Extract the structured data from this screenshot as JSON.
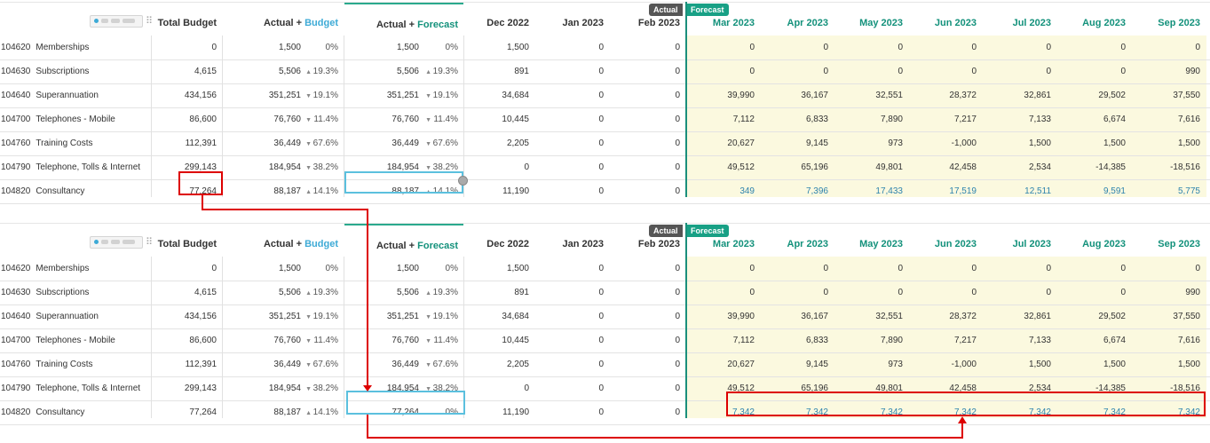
{
  "headers": {
    "total_budget": "Total Budget",
    "actual_budget": {
      "actual": "Actual",
      "plus": " + ",
      "budget": "Budget"
    },
    "actual_forecast": {
      "actual": "Actual",
      "plus": " + ",
      "forecast": "Forecast"
    },
    "months": [
      "Dec 2022",
      "Jan 2023",
      "Feb 2023",
      "Mar 2023",
      "Apr 2023",
      "May 2023",
      "Jun 2023",
      "Jul 2023",
      "Aug 2023",
      "Sep 2023"
    ],
    "actual_tag": "Actual",
    "forecast_tag": "Forecast"
  },
  "colors": {
    "forecast_green": "#13917b",
    "budget_blue": "#3daad6",
    "highlight_red": "#dd0000"
  },
  "grids": [
    {
      "rows": [
        {
          "code": "104620",
          "name": "Memberships",
          "total": "0",
          "ab": "1,500",
          "ab_arrow": "",
          "ab_pct": "0%",
          "af": "1,500",
          "af_arrow": "",
          "af_pct": "0%",
          "months": [
            "1,500",
            "0",
            "0",
            "0",
            "0",
            "0",
            "0",
            "0",
            "0",
            "0"
          ]
        },
        {
          "code": "104630",
          "name": "Subscriptions",
          "total": "4,615",
          "ab": "5,506",
          "ab_arrow": "▲",
          "ab_pct": "19.3%",
          "af": "5,506",
          "af_arrow": "▲",
          "af_pct": "19.3%",
          "months": [
            "891",
            "0",
            "0",
            "0",
            "0",
            "0",
            "0",
            "0",
            "0",
            "990"
          ]
        },
        {
          "code": "104640",
          "name": "Superannuation",
          "total": "434,156",
          "ab": "351,251",
          "ab_arrow": "▼",
          "ab_pct": "19.1%",
          "af": "351,251",
          "af_arrow": "▼",
          "af_pct": "19.1%",
          "months": [
            "34,684",
            "0",
            "0",
            "39,990",
            "36,167",
            "32,551",
            "28,372",
            "32,861",
            "29,502",
            "37,550"
          ]
        },
        {
          "code": "104700",
          "name": "Telephones - Mobile",
          "total": "86,600",
          "ab": "76,760",
          "ab_arrow": "▼",
          "ab_pct": "11.4%",
          "af": "76,760",
          "af_arrow": "▼",
          "af_pct": "11.4%",
          "months": [
            "10,445",
            "0",
            "0",
            "7,112",
            "6,833",
            "7,890",
            "7,217",
            "7,133",
            "6,674",
            "7,616"
          ]
        },
        {
          "code": "104760",
          "name": "Training Costs",
          "total": "112,391",
          "ab": "36,449",
          "ab_arrow": "▼",
          "ab_pct": "67.6%",
          "af": "36,449",
          "af_arrow": "▼",
          "af_pct": "67.6%",
          "months": [
            "2,205",
            "0",
            "0",
            "20,627",
            "9,145",
            "973",
            "-1,000",
            "1,500",
            "1,500",
            "1,500"
          ]
        },
        {
          "code": "104790",
          "name": "Telephone, Tolls & Internet",
          "total": "299,143",
          "ab": "184,954",
          "ab_arrow": "▼",
          "ab_pct": "38.2%",
          "af": "184,954",
          "af_arrow": "▼",
          "af_pct": "38.2%",
          "months": [
            "0",
            "0",
            "0",
            "49,512",
            "65,196",
            "49,801",
            "42,458",
            "2,534",
            "-14,385",
            "-18,516"
          ]
        },
        {
          "code": "104820",
          "name": "Consultancy",
          "total": "77,264",
          "ab": "88,187",
          "ab_arrow": "▲",
          "ab_pct": "14.1%",
          "af": "88,187",
          "af_arrow": "▲",
          "af_pct": "14.1%",
          "months": [
            "11,190",
            "0",
            "0",
            "349",
            "7,396",
            "17,433",
            "17,519",
            "12,511",
            "9,591",
            "5,775"
          ]
        }
      ]
    },
    {
      "rows": [
        {
          "code": "104620",
          "name": "Memberships",
          "total": "0",
          "ab": "1,500",
          "ab_arrow": "",
          "ab_pct": "0%",
          "af": "1,500",
          "af_arrow": "",
          "af_pct": "0%",
          "months": [
            "1,500",
            "0",
            "0",
            "0",
            "0",
            "0",
            "0",
            "0",
            "0",
            "0"
          ]
        },
        {
          "code": "104630",
          "name": "Subscriptions",
          "total": "4,615",
          "ab": "5,506",
          "ab_arrow": "▲",
          "ab_pct": "19.3%",
          "af": "5,506",
          "af_arrow": "▲",
          "af_pct": "19.3%",
          "months": [
            "891",
            "0",
            "0",
            "0",
            "0",
            "0",
            "0",
            "0",
            "0",
            "990"
          ]
        },
        {
          "code": "104640",
          "name": "Superannuation",
          "total": "434,156",
          "ab": "351,251",
          "ab_arrow": "▼",
          "ab_pct": "19.1%",
          "af": "351,251",
          "af_arrow": "▼",
          "af_pct": "19.1%",
          "months": [
            "34,684",
            "0",
            "0",
            "39,990",
            "36,167",
            "32,551",
            "28,372",
            "32,861",
            "29,502",
            "37,550"
          ]
        },
        {
          "code": "104700",
          "name": "Telephones - Mobile",
          "total": "86,600",
          "ab": "76,760",
          "ab_arrow": "▼",
          "ab_pct": "11.4%",
          "af": "76,760",
          "af_arrow": "▼",
          "af_pct": "11.4%",
          "months": [
            "10,445",
            "0",
            "0",
            "7,112",
            "6,833",
            "7,890",
            "7,217",
            "7,133",
            "6,674",
            "7,616"
          ]
        },
        {
          "code": "104760",
          "name": "Training Costs",
          "total": "112,391",
          "ab": "36,449",
          "ab_arrow": "▼",
          "ab_pct": "67.6%",
          "af": "36,449",
          "af_arrow": "▼",
          "af_pct": "67.6%",
          "months": [
            "2,205",
            "0",
            "0",
            "20,627",
            "9,145",
            "973",
            "-1,000",
            "1,500",
            "1,500",
            "1,500"
          ]
        },
        {
          "code": "104790",
          "name": "Telephone, Tolls & Internet",
          "total": "299,143",
          "ab": "184,954",
          "ab_arrow": "▼",
          "ab_pct": "38.2%",
          "af": "184,954",
          "af_arrow": "▼",
          "af_pct": "38.2%",
          "months": [
            "0",
            "0",
            "0",
            "49,512",
            "65,196",
            "49,801",
            "42,458",
            "2,534",
            "-14,385",
            "-18,516"
          ]
        },
        {
          "code": "104820",
          "name": "Consultancy",
          "total": "77,264",
          "ab": "88,187",
          "ab_arrow": "▲",
          "ab_pct": "14.1%",
          "af": "77,264",
          "af_arrow": "",
          "af_pct": "0%",
          "months": [
            "11,190",
            "0",
            "0",
            "7,342",
            "7,342",
            "7,342",
            "7,342",
            "7,342",
            "7,342",
            "7,342"
          ]
        }
      ]
    }
  ]
}
